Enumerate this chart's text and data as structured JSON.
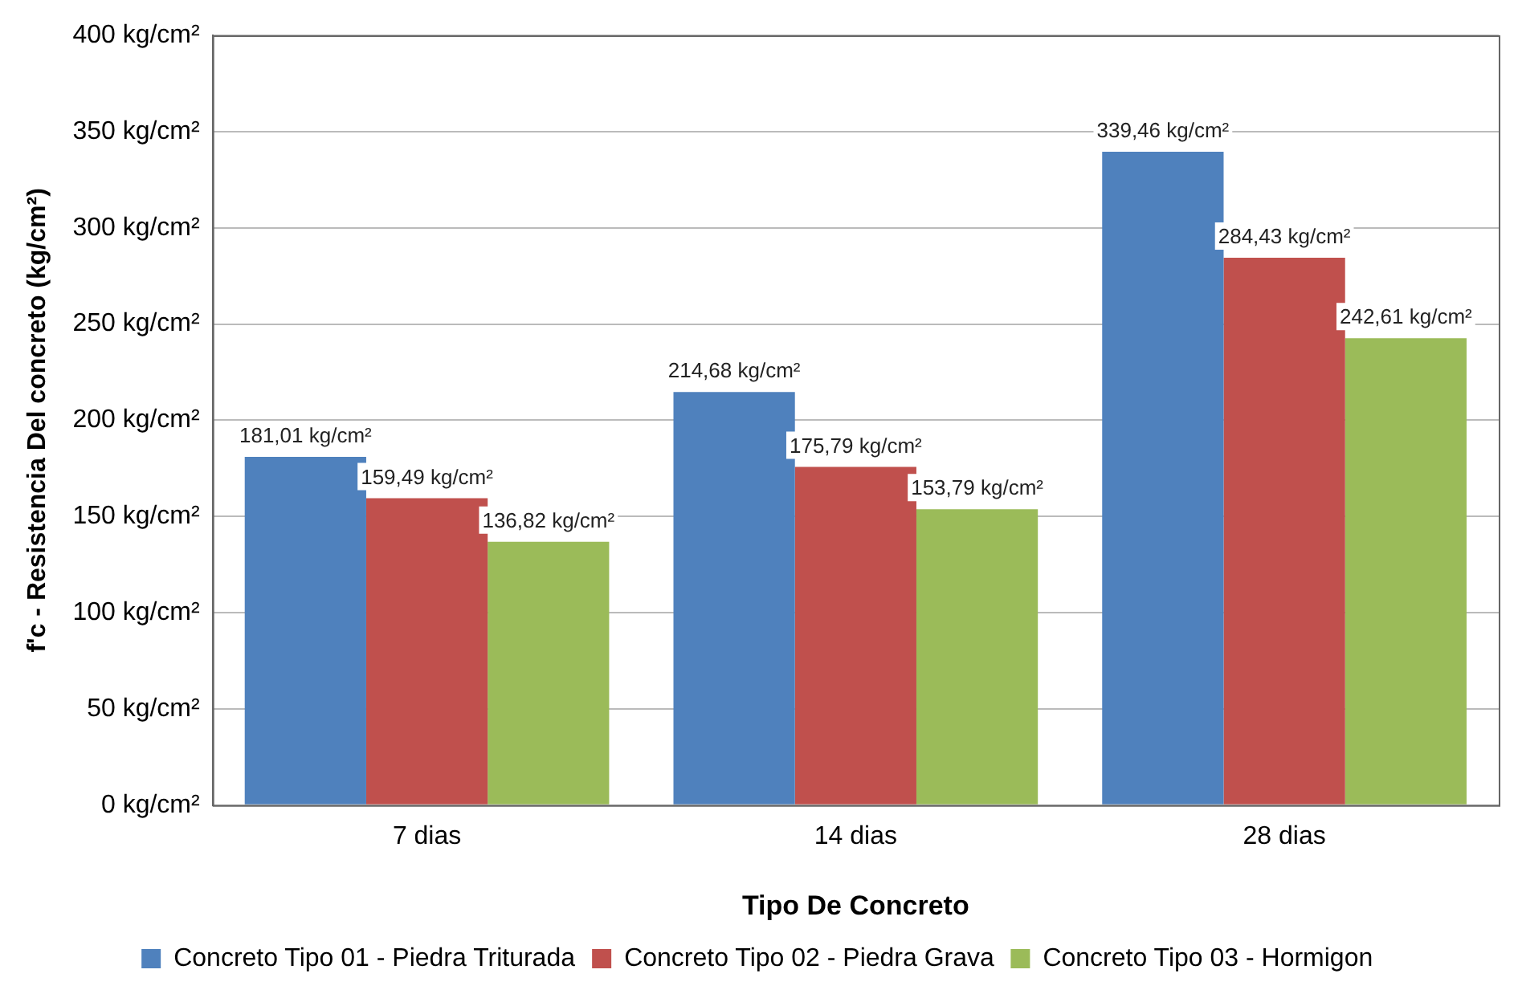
{
  "chart_data": {
    "type": "bar",
    "xlabel": "Tipo De Concreto",
    "ylabel": "f'c - Resistencia Del concreto (kg/cm²)",
    "categories": [
      "7 dias",
      "14 dias",
      "28 dias"
    ],
    "series": [
      {
        "name": "Concreto Tipo 01 - Piedra Triturada",
        "color": "#4f81bd",
        "values": [
          181.01,
          214.68,
          339.46
        ],
        "value_labels": [
          "181,01 kg/cm²",
          "214,68 kg/cm²",
          "339,46 kg/cm²"
        ]
      },
      {
        "name": "Concreto Tipo 02 - Piedra Grava",
        "color": "#c0504d",
        "values": [
          159.49,
          175.79,
          284.43
        ],
        "value_labels": [
          "159,49 kg/cm²",
          "175,79 kg/cm²",
          "284,43 kg/cm²"
        ]
      },
      {
        "name": "Concreto Tipo 03 - Hormigon",
        "color": "#9bbb59",
        "values": [
          136.82,
          153.79,
          242.61
        ],
        "value_labels": [
          "136,82 kg/cm²",
          "153,79 kg/cm²",
          "242,61 kg/cm²"
        ]
      }
    ],
    "ylim": [
      0,
      400
    ],
    "yticks": [
      {
        "value": 0,
        "label": "0 kg/cm²"
      },
      {
        "value": 50,
        "label": "50 kg/cm²"
      },
      {
        "value": 100,
        "label": "100 kg/cm²"
      },
      {
        "value": 150,
        "label": "150 kg/cm²"
      },
      {
        "value": 200,
        "label": "200 kg/cm²"
      },
      {
        "value": 250,
        "label": "250 kg/cm²"
      },
      {
        "value": 300,
        "label": "300 kg/cm²"
      },
      {
        "value": 350,
        "label": "350 kg/cm²"
      },
      {
        "value": 400,
        "label": "400 kg/cm²"
      }
    ],
    "grid": "y",
    "legend": "bottom"
  }
}
